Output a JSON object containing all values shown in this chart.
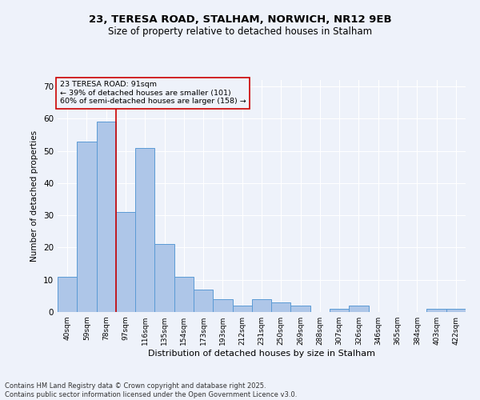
{
  "title1": "23, TERESA ROAD, STALHAM, NORWICH, NR12 9EB",
  "title2": "Size of property relative to detached houses in Stalham",
  "xlabel": "Distribution of detached houses by size in Stalham",
  "ylabel": "Number of detached properties",
  "categories": [
    "40sqm",
    "59sqm",
    "78sqm",
    "97sqm",
    "116sqm",
    "135sqm",
    "154sqm",
    "173sqm",
    "193sqm",
    "212sqm",
    "231sqm",
    "250sqm",
    "269sqm",
    "288sqm",
    "307sqm",
    "326sqm",
    "346sqm",
    "365sqm",
    "384sqm",
    "403sqm",
    "422sqm"
  ],
  "values": [
    11,
    53,
    59,
    31,
    51,
    21,
    11,
    7,
    4,
    2,
    4,
    3,
    2,
    0,
    1,
    2,
    0,
    0,
    0,
    1,
    1
  ],
  "bar_color": "#aec6e8",
  "bar_edge_color": "#5b9bd5",
  "vline_x": 2.5,
  "vline_color": "#cc0000",
  "annotation_title": "23 TERESA ROAD: 91sqm",
  "annotation_line1": "← 39% of detached houses are smaller (101)",
  "annotation_line2": "60% of semi-detached houses are larger (158) →",
  "annotation_box_color": "#cc0000",
  "ylim": [
    0,
    72
  ],
  "yticks": [
    0,
    10,
    20,
    30,
    40,
    50,
    60,
    70
  ],
  "footnote1": "Contains HM Land Registry data © Crown copyright and database right 2025.",
  "footnote2": "Contains public sector information licensed under the Open Government Licence v3.0.",
  "bg_color": "#eef2fa",
  "grid_color": "#ffffff"
}
